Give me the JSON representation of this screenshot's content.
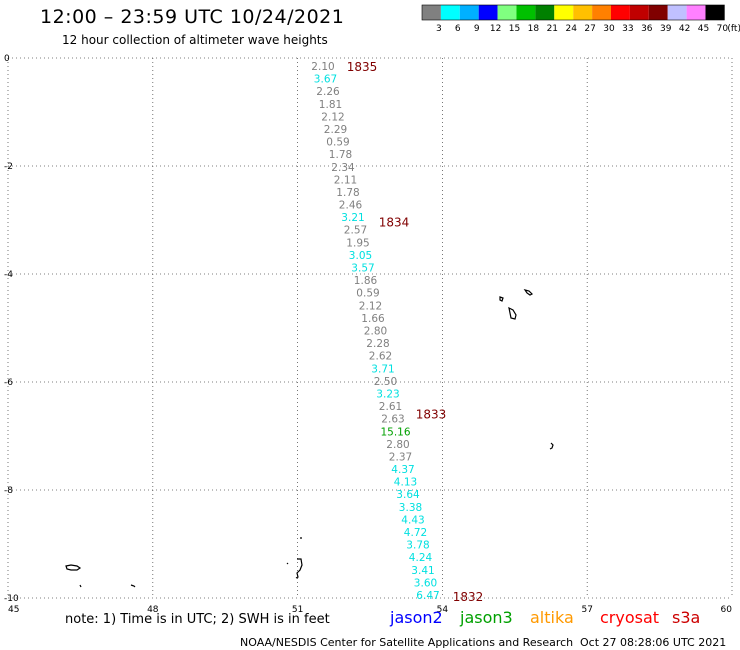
{
  "header": {
    "title": "12:00 – 23:59 UTC 10/24/2021",
    "subtitle": "12 hour collection of altimeter wave heights"
  },
  "colorbar": {
    "labels": [
      "3",
      "6",
      "9",
      "12",
      "15",
      "18",
      "21",
      "24",
      "27",
      "30",
      "33",
      "36",
      "39",
      "42",
      "45",
      "70"
    ],
    "unit": "(ft)",
    "colors": [
      "#808080",
      "#00ffff",
      "#00b0ff",
      "#0000ff",
      "#80ff80",
      "#00c000",
      "#008000",
      "#ffff00",
      "#ffc000",
      "#ff8000",
      "#ff0000",
      "#c00000",
      "#800000",
      "#c0c0ff",
      "#ff80ff",
      "#000000"
    ]
  },
  "axes": {
    "x_ticks": [
      "45",
      "48",
      "51",
      "54",
      "57",
      "60"
    ],
    "y_ticks": [
      "0",
      "-2",
      "-4",
      "-6",
      "-8",
      "-10"
    ],
    "xlim": [
      45,
      60
    ],
    "ylim": [
      -10,
      0
    ]
  },
  "times": [
    {
      "label": "1835",
      "lat": -0.17
    },
    {
      "label": "1834",
      "lat": -3.05
    },
    {
      "label": "1833",
      "lat": -6.6
    },
    {
      "label": "1832",
      "lat": -9.98
    }
  ],
  "wave_heights": [
    {
      "value": "2.10",
      "color": "#808080"
    },
    {
      "value": "3.67",
      "color": "#00e0e0"
    },
    {
      "value": "2.26",
      "color": "#808080"
    },
    {
      "value": "1.81",
      "color": "#808080"
    },
    {
      "value": "2.12",
      "color": "#808080"
    },
    {
      "value": "2.29",
      "color": "#808080"
    },
    {
      "value": "0.59",
      "color": "#808080"
    },
    {
      "value": "1.78",
      "color": "#808080"
    },
    {
      "value": "2.34",
      "color": "#808080"
    },
    {
      "value": "2.11",
      "color": "#808080"
    },
    {
      "value": "1.78",
      "color": "#808080"
    },
    {
      "value": "2.46",
      "color": "#808080"
    },
    {
      "value": "3.21",
      "color": "#00e0e0"
    },
    {
      "value": "2.57",
      "color": "#808080"
    },
    {
      "value": "1.95",
      "color": "#808080"
    },
    {
      "value": "3.05",
      "color": "#00e0e0"
    },
    {
      "value": "3.57",
      "color": "#00e0e0"
    },
    {
      "value": "1.86",
      "color": "#808080"
    },
    {
      "value": "0.59",
      "color": "#808080"
    },
    {
      "value": "2.12",
      "color": "#808080"
    },
    {
      "value": "1.66",
      "color": "#808080"
    },
    {
      "value": "2.80",
      "color": "#808080"
    },
    {
      "value": "2.28",
      "color": "#808080"
    },
    {
      "value": "2.62",
      "color": "#808080"
    },
    {
      "value": "3.71",
      "color": "#00e0e0"
    },
    {
      "value": "2.50",
      "color": "#808080"
    },
    {
      "value": "3.23",
      "color": "#00e0e0"
    },
    {
      "value": "2.61",
      "color": "#808080"
    },
    {
      "value": "2.63",
      "color": "#808080"
    },
    {
      "value": "15.16",
      "color": "#00a000"
    },
    {
      "value": "2.80",
      "color": "#808080"
    },
    {
      "value": "2.37",
      "color": "#808080"
    },
    {
      "value": "4.37",
      "color": "#00e0e0"
    },
    {
      "value": "4.13",
      "color": "#00e0e0"
    },
    {
      "value": "3.64",
      "color": "#00e0e0"
    },
    {
      "value": "3.38",
      "color": "#00e0e0"
    },
    {
      "value": "4.43",
      "color": "#00e0e0"
    },
    {
      "value": "4.72",
      "color": "#00e0e0"
    },
    {
      "value": "3.78",
      "color": "#00e0e0"
    },
    {
      "value": "4.24",
      "color": "#00e0e0"
    },
    {
      "value": "3.41",
      "color": "#00e0e0"
    },
    {
      "value": "3.60",
      "color": "#00e0e0"
    },
    {
      "value": "6.47",
      "color": "#00e0e0"
    }
  ],
  "legend": {
    "note": "note:  1) Time is in UTC;  2) SWH is in feet",
    "satellites": [
      {
        "name": "jason2",
        "color": "#0000ff"
      },
      {
        "name": "jason3",
        "color": "#00a000"
      },
      {
        "name": "altika",
        "color": "#ff9900"
      },
      {
        "name": "cryosat",
        "color": "#ff0000"
      },
      {
        "name": "s3a",
        "color": "#cc0000"
      }
    ]
  },
  "footer": {
    "credit": "NOAA/NESDIS Center for Satellite Applications and Research",
    "timestamp": "Oct 27 08:28:06 UTC 2021"
  }
}
